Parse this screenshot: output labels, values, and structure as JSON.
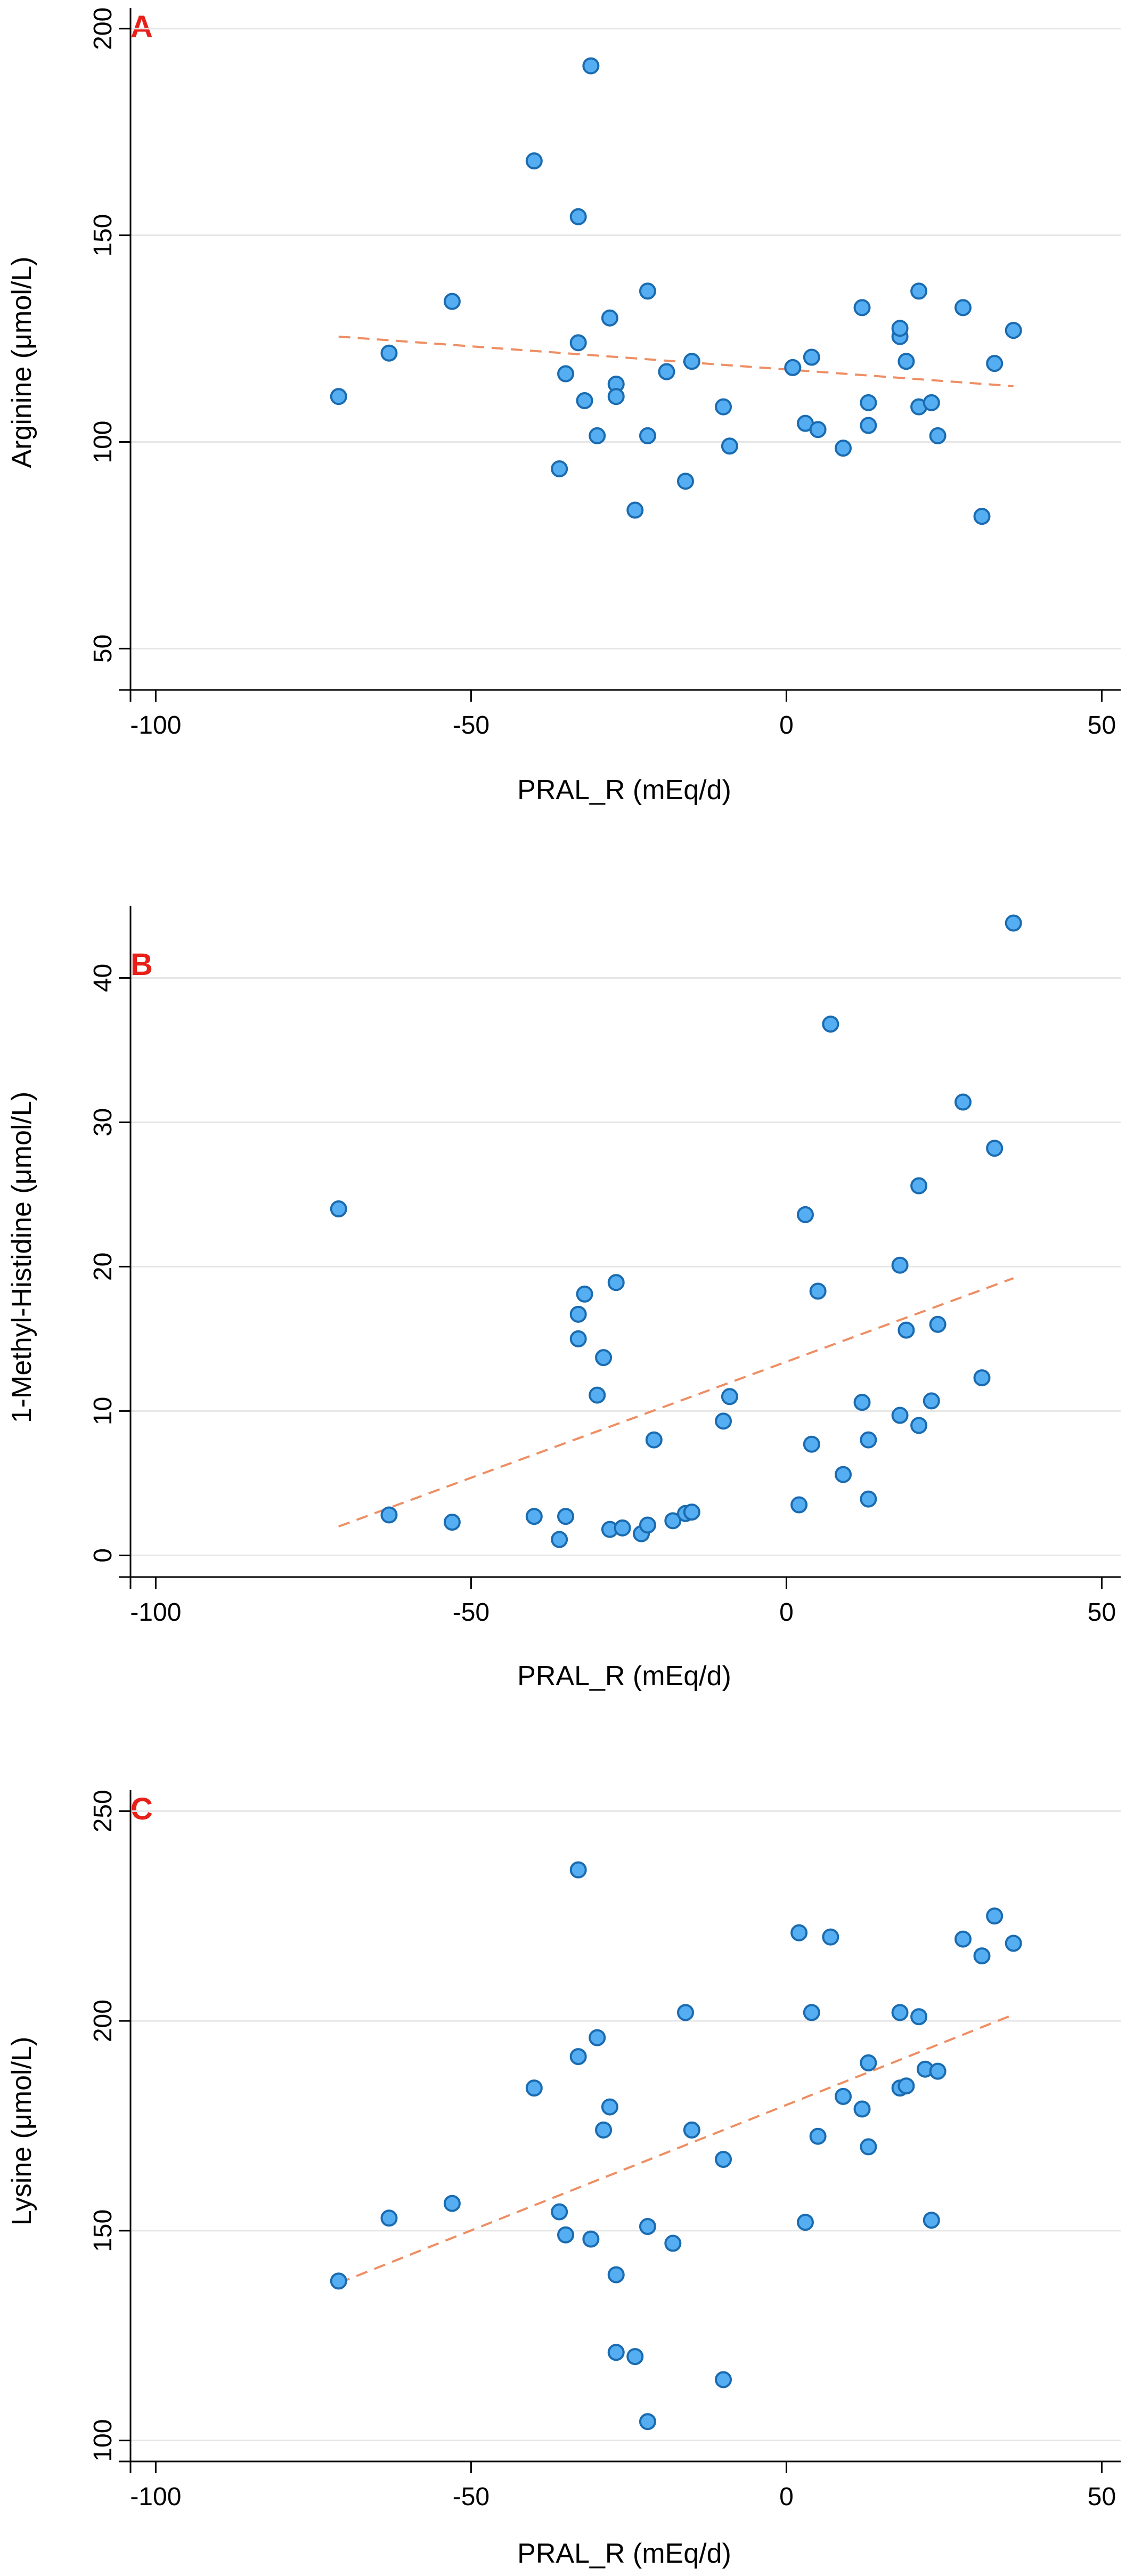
{
  "colors": {
    "point_fill": "#55aef2",
    "point_stroke": "#1a6bb0",
    "trend": "#ee8e64",
    "panel_label": "#e8201a"
  },
  "chart_data": [
    {
      "id": "A",
      "panel_label": "A",
      "type": "scatter",
      "xlabel": "PRAL_R (mEq/d)",
      "ylabel": "Arginine (μmol/L)",
      "xlim": [
        -104,
        53
      ],
      "ylim": [
        40,
        205
      ],
      "xticks": [
        -100,
        -50,
        0,
        50
      ],
      "xtick_labels": [
        "-100",
        "-50",
        "0",
        "50"
      ],
      "yticks": [
        50,
        100,
        150,
        200
      ],
      "ytick_labels": [
        "50",
        "100",
        "150",
        "200"
      ],
      "grid": true,
      "trendline": {
        "x": [
          -71,
          36
        ],
        "y": [
          125.5,
          113.5
        ],
        "style": "dashed"
      },
      "points": {
        "x": [
          -71,
          -63,
          -53,
          -40,
          -36,
          -35,
          -33,
          -33,
          -32,
          -31,
          -30,
          -28,
          -27,
          -27,
          -24,
          -22,
          -22,
          -19,
          -16,
          -15,
          -10,
          -9,
          1,
          3,
          4,
          5,
          9,
          12,
          13,
          13,
          18,
          18,
          19,
          21,
          21,
          23,
          24,
          28,
          31,
          33,
          36
        ],
        "y": [
          111,
          121.5,
          134,
          168,
          93.5,
          116.5,
          154.5,
          124,
          110,
          191,
          101.5,
          130,
          114,
          111,
          83.5,
          101.5,
          136.5,
          117,
          90.5,
          119.5,
          108.5,
          99,
          118,
          104.5,
          120.5,
          103,
          98.5,
          132.5,
          109.5,
          104,
          125.5,
          127.5,
          119.5,
          136.5,
          108.5,
          109.5,
          101.5,
          132.5,
          82,
          119,
          127
        ]
      }
    },
    {
      "id": "B",
      "panel_label": "B",
      "type": "scatter",
      "xlabel": "PRAL_R (mEq/d)",
      "ylabel": "1-Methyl-Histidine (μmol/L)",
      "xlim": [
        -104,
        53
      ],
      "ylim": [
        -1.5,
        45
      ],
      "xticks": [
        -100,
        -50,
        0,
        50
      ],
      "xtick_labels": [
        "-100",
        "-50",
        "0",
        "50"
      ],
      "yticks": [
        0,
        10,
        20,
        30,
        40
      ],
      "ytick_labels": [
        "0",
        "10",
        "20",
        "30",
        "40"
      ],
      "grid": true,
      "trendline": {
        "x": [
          -71,
          36
        ],
        "y": [
          2,
          19.2
        ],
        "style": "dashed"
      },
      "points": {
        "x": [
          -71,
          -63,
          -53,
          -40,
          -36,
          -35,
          -33,
          -33,
          -32,
          -30,
          -29,
          -28,
          -27,
          -26,
          -23,
          -22,
          -21,
          -18,
          -16,
          -15,
          -10,
          -9,
          2,
          3,
          4,
          5,
          7,
          9,
          12,
          13,
          13,
          18,
          18,
          19,
          21,
          21,
          23,
          24,
          28,
          31,
          33,
          36
        ],
        "y": [
          24,
          2.8,
          2.3,
          2.7,
          1.1,
          2.7,
          15,
          16.7,
          18.1,
          11.1,
          13.7,
          1.8,
          18.9,
          1.9,
          1.5,
          2.1,
          8,
          2.4,
          2.9,
          3,
          9.3,
          11,
          3.5,
          23.6,
          7.7,
          18.3,
          36.8,
          5.6,
          10.6,
          8,
          3.9,
          9.7,
          20.1,
          15.6,
          9,
          25.6,
          10.7,
          16,
          31.4,
          12.3,
          28.2,
          43.8
        ]
      }
    },
    {
      "id": "C",
      "panel_label": "C",
      "type": "scatter",
      "xlabel": "PRAL_R (mEq/d)",
      "ylabel": "Lysine (μmol/L)",
      "xlim": [
        -104,
        53
      ],
      "ylim": [
        95,
        255
      ],
      "xticks": [
        -100,
        -50,
        0,
        50
      ],
      "xtick_labels": [
        "-100",
        "-50",
        "0",
        "50"
      ],
      "yticks": [
        100,
        150,
        200,
        250
      ],
      "ytick_labels": [
        "100",
        "150",
        "200",
        "250"
      ],
      "grid": true,
      "trendline": {
        "x": [
          -71,
          36
        ],
        "y": [
          137.5,
          201.5
        ],
        "style": "dashed"
      },
      "points": {
        "x": [
          -71,
          -63,
          -53,
          -40,
          -36,
          -35,
          -33,
          -33,
          -31,
          -30,
          -29,
          -28,
          -27,
          -27,
          -24,
          -22,
          -22,
          -18,
          -16,
          -15,
          -10,
          -10,
          2,
          3,
          4,
          5,
          7,
          9,
          12,
          13,
          13,
          18,
          18,
          19,
          21,
          22,
          23,
          24,
          28,
          31,
          33,
          36
        ],
        "y": [
          138,
          153,
          156.5,
          184,
          154.5,
          149,
          236,
          191.5,
          148,
          196,
          174,
          179.5,
          139.5,
          121,
          120,
          104.5,
          151,
          147,
          202,
          174,
          167,
          114.5,
          221,
          152,
          202,
          172.5,
          220,
          182,
          179,
          170,
          190,
          184,
          202,
          184.5,
          201,
          188.5,
          152.5,
          188,
          219.5,
          215.5,
          225,
          218.5
        ]
      }
    }
  ]
}
